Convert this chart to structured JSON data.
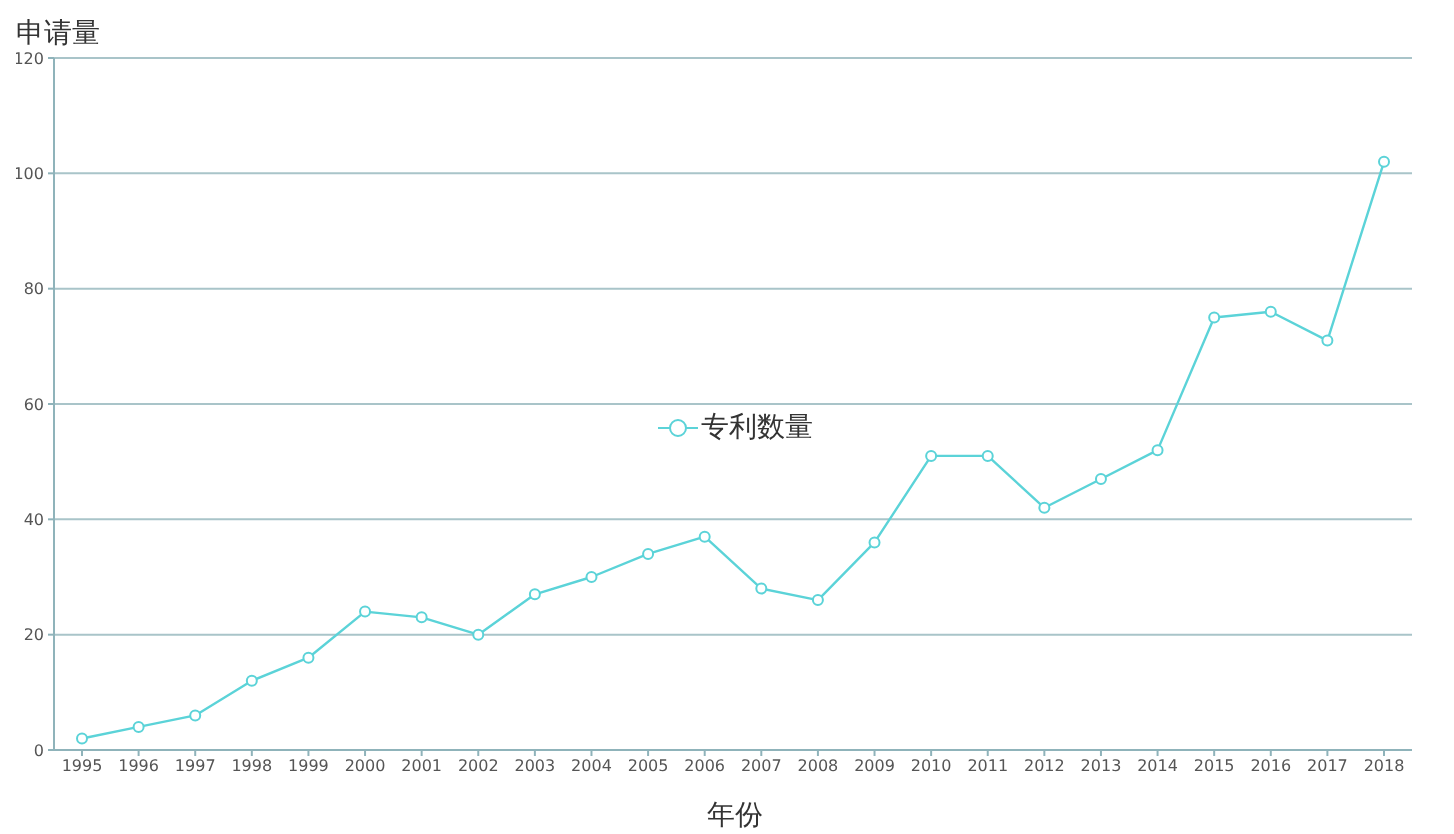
{
  "chart_data": {
    "type": "line",
    "ylabel": "申请量",
    "xlabel": "年份",
    "categories": [
      "1995",
      "1996",
      "1997",
      "1998",
      "1999",
      "2000",
      "2001",
      "2002",
      "2003",
      "2004",
      "2005",
      "2006",
      "2007",
      "2008",
      "2009",
      "2010",
      "2011",
      "2012",
      "2013",
      "2014",
      "2015",
      "2016",
      "2017",
      "2018"
    ],
    "series": [
      {
        "name": "专利数量",
        "color": "#5bd3d8",
        "values": [
          2,
          4,
          6,
          12,
          16,
          24,
          23,
          20,
          27,
          30,
          34,
          37,
          28,
          26,
          36,
          51,
          51,
          42,
          47,
          52,
          75,
          76,
          71,
          102
        ]
      }
    ],
    "ylim": [
      0,
      120
    ],
    "yticks": [
      0,
      20,
      40,
      60,
      80,
      100,
      120
    ],
    "grid": "y",
    "legend": "center",
    "marker": "circle",
    "line_style": "solid"
  }
}
